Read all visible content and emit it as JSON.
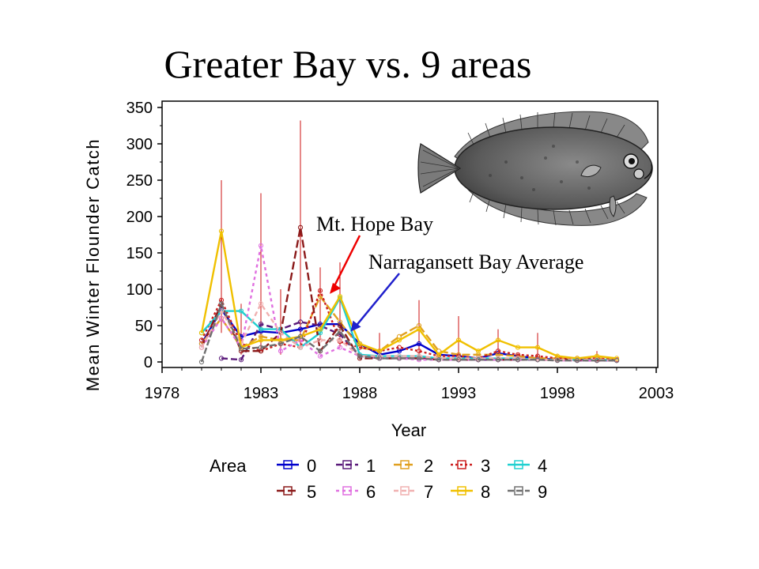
{
  "slide": {
    "title": "Greater Bay vs. 9 areas"
  },
  "chart_data": {
    "type": "line",
    "xlabel": "Year",
    "ylabel": "Mean Winter Flounder Catch",
    "xlim": [
      1978,
      2003
    ],
    "ylim": [
      0,
      350
    ],
    "xticks": [
      1978,
      1983,
      1988,
      1993,
      1998,
      2003
    ],
    "yticks": [
      0,
      50,
      100,
      150,
      200,
      250,
      300,
      350
    ],
    "legend_title": "Area",
    "legend_position": "bottom",
    "x": [
      1980,
      1981,
      1982,
      1983,
      1984,
      1985,
      1986,
      1987,
      1988,
      1989,
      1990,
      1991,
      1992,
      1993,
      1994,
      1995,
      1996,
      1997,
      1998,
      1999,
      2000,
      2001
    ],
    "series": [
      {
        "name": "0",
        "color": "#0000cc",
        "dash": "",
        "values": [
          25,
          72,
          35,
          42,
          40,
          45,
          52,
          52,
          25,
          10,
          15,
          25,
          10,
          8,
          5,
          12,
          8,
          5,
          3,
          3,
          3,
          2
        ]
      },
      {
        "name": "1",
        "color": "#5a1a7a",
        "dash": "8,4",
        "values": [
          null,
          5,
          3,
          52,
          45,
          55,
          50,
          38,
          8,
          5,
          5,
          5,
          3,
          3,
          3,
          3,
          3,
          3,
          3,
          2,
          2,
          2
        ]
      },
      {
        "name": "2",
        "color": "#e0a020",
        "dash": "10,4",
        "values": [
          25,
          60,
          20,
          35,
          30,
          30,
          90,
          55,
          20,
          15,
          35,
          50,
          15,
          10,
          10,
          10,
          8,
          5,
          5,
          5,
          5,
          3
        ]
      },
      {
        "name": "3",
        "color": "#cc2020",
        "dash": "3,3",
        "values": [
          30,
          85,
          25,
          15,
          25,
          20,
          98,
          28,
          20,
          15,
          20,
          15,
          8,
          8,
          5,
          15,
          10,
          8,
          5,
          5,
          5,
          3
        ]
      },
      {
        "name": "4",
        "color": "#20d0d0",
        "dash": "",
        "values": [
          40,
          70,
          70,
          45,
          45,
          20,
          40,
          88,
          10,
          8,
          8,
          8,
          5,
          5,
          5,
          5,
          5,
          3,
          3,
          3,
          3,
          2
        ]
      },
      {
        "name": "5",
        "color": "#8b1a1a",
        "dash": "10,4",
        "values": [
          20,
          80,
          15,
          15,
          40,
          185,
          15,
          50,
          5,
          5,
          5,
          5,
          3,
          3,
          3,
          3,
          3,
          3,
          3,
          3,
          2,
          2
        ]
      },
      {
        "name": "6",
        "color": "#e070e0",
        "dash": "4,4",
        "values": [
          20,
          60,
          20,
          160,
          15,
          30,
          8,
          20,
          8,
          5,
          5,
          3,
          3,
          3,
          3,
          3,
          3,
          3,
          2,
          2,
          2,
          2
        ]
      },
      {
        "name": "7",
        "color": "#f0b0b0",
        "dash": "6,4",
        "values": [
          20,
          70,
          25,
          80,
          40,
          20,
          30,
          30,
          8,
          8,
          8,
          8,
          5,
          5,
          5,
          5,
          5,
          3,
          3,
          3,
          3,
          2
        ]
      },
      {
        "name": "8",
        "color": "#f0c000",
        "dash": "",
        "values": [
          40,
          180,
          20,
          30,
          30,
          35,
          45,
          90,
          25,
          15,
          30,
          45,
          10,
          30,
          15,
          30,
          20,
          20,
          8,
          5,
          8,
          5
        ]
      },
      {
        "name": "9",
        "color": "#707070",
        "dash": "8,3",
        "values": [
          0,
          80,
          18,
          20,
          25,
          35,
          15,
          42,
          8,
          5,
          5,
          5,
          3,
          3,
          3,
          3,
          3,
          3,
          2,
          2,
          2,
          2
        ]
      }
    ],
    "error_bars": [
      {
        "x": 1981,
        "low": 40,
        "high": 250
      },
      {
        "x": 1982,
        "low": 10,
        "high": 80
      },
      {
        "x": 1983,
        "low": 15,
        "high": 232
      },
      {
        "x": 1984,
        "low": 10,
        "high": 100
      },
      {
        "x": 1985,
        "low": 20,
        "high": 332
      },
      {
        "x": 1986,
        "low": 30,
        "high": 130
      },
      {
        "x": 1987,
        "low": 20,
        "high": 137
      },
      {
        "x": 1989,
        "low": 5,
        "high": 40
      },
      {
        "x": 1991,
        "low": 5,
        "high": 85
      },
      {
        "x": 1993,
        "low": 5,
        "high": 63
      },
      {
        "x": 1995,
        "low": 5,
        "high": 45
      },
      {
        "x": 1997,
        "low": 3,
        "high": 40
      },
      {
        "x": 1998,
        "low": 2,
        "high": 10
      },
      {
        "x": 2000,
        "low": 2,
        "high": 15
      }
    ],
    "error_bar_color": "#cc1010",
    "annotations": [
      {
        "text": "Mt. Hope Bay",
        "arrow_color": "#ee0000",
        "target": {
          "x": 1986.4,
          "y": 98
        }
      },
      {
        "text": "Narragansett Bay Average",
        "arrow_color": "#2020cc",
        "target": {
          "x": 1987.5,
          "y": 45
        }
      }
    ],
    "image": "winter-flounder-illustration"
  }
}
